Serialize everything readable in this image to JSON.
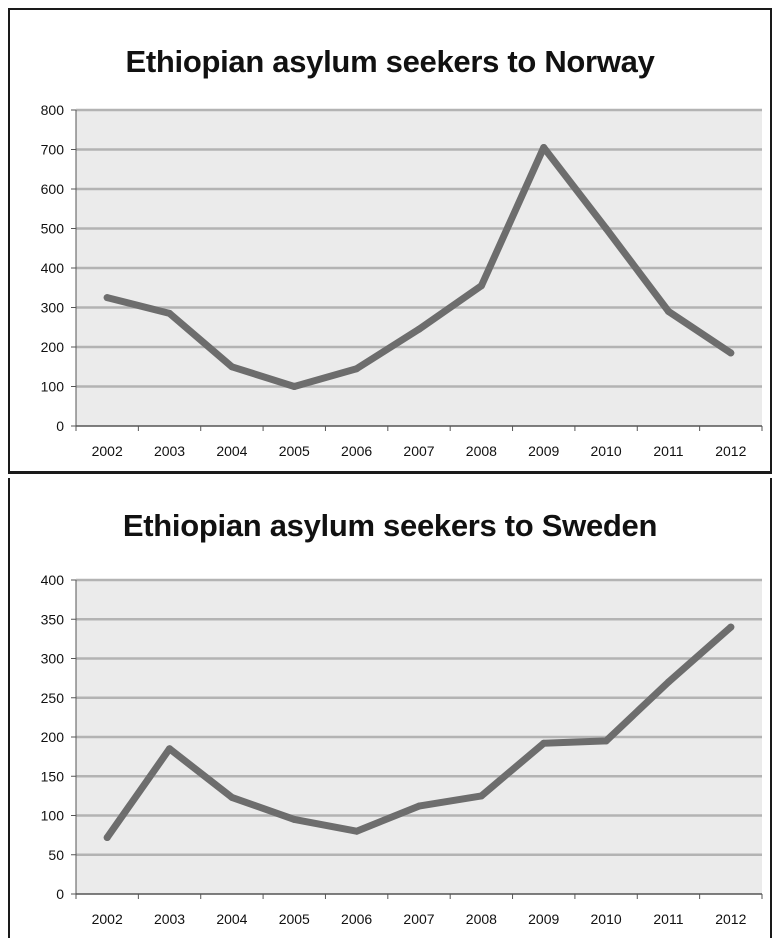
{
  "colors": {
    "plot_background": "#ebebeb",
    "gridline": "#b3b3b3",
    "series_line": "#6d6d6d",
    "axis": "#555555",
    "border": "#1a1a1a"
  },
  "chart_data": [
    {
      "type": "line",
      "title": "Ethiopian asylum seekers to Norway",
      "xlabel": "",
      "ylabel": "",
      "categories": [
        "2002",
        "2003",
        "2004",
        "2005",
        "2006",
        "2007",
        "2008",
        "2009",
        "2010",
        "2011",
        "2012"
      ],
      "series": [
        {
          "values": [
            325,
            285,
            150,
            100,
            145,
            245,
            355,
            705,
            500,
            290,
            185
          ]
        }
      ],
      "ylim": [
        0,
        800
      ],
      "yticks": [
        "0",
        "100",
        "200",
        "300",
        "400",
        "500",
        "600",
        "700",
        "800"
      ],
      "grid": true,
      "legend": "none"
    },
    {
      "type": "line",
      "title": "Ethiopian asylum seekers to Sweden",
      "xlabel": "",
      "ylabel": "",
      "categories": [
        "2002",
        "2003",
        "2004",
        "2005",
        "2006",
        "2007",
        "2008",
        "2009",
        "2010",
        "2011",
        "2012"
      ],
      "series": [
        {
          "values": [
            72,
            185,
            123,
            95,
            80,
            112,
            125,
            192,
            195,
            270,
            340
          ]
        }
      ],
      "ylim": [
        0,
        400
      ],
      "yticks": [
        "0",
        "50",
        "100",
        "150",
        "200",
        "250",
        "300",
        "350",
        "400"
      ],
      "grid": true,
      "legend": "none"
    }
  ]
}
